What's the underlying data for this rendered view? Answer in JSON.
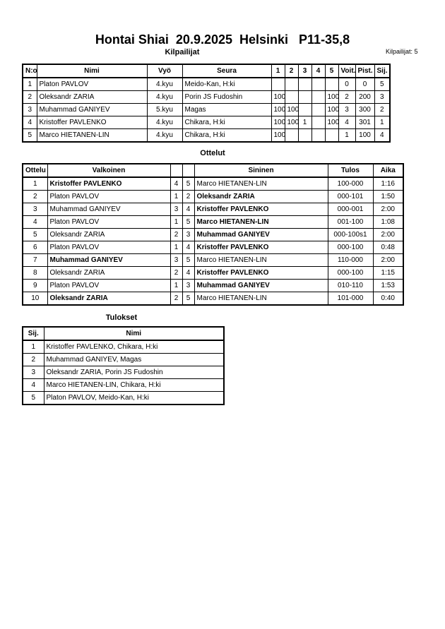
{
  "header": {
    "title": "Hontai Shiai  20.9.2025  Helsinki   P11-35,8",
    "subtitle": "Kilpailijat",
    "count": "Kilpailijat: 5"
  },
  "competitors": {
    "columns": [
      "N:o",
      "Nimi",
      "Vyö",
      "Seura",
      "1",
      "2",
      "3",
      "4",
      "5",
      "Voit.",
      "Pist.",
      "Sij."
    ],
    "rows": [
      [
        "1",
        "Platon PAVLOV",
        "4.kyu",
        "Meido-Kan, H:ki",
        null,
        null,
        null,
        null,
        null,
        "0",
        "0",
        "5"
      ],
      [
        "2",
        "Oleksandr ZARIA",
        "4.kyu",
        "Porin JS Fudoshin",
        "100",
        null,
        null,
        null,
        "100",
        "2",
        "200",
        "3"
      ],
      [
        "3",
        "Muhammad GANIYEV",
        "5.kyu",
        "Magas",
        "100",
        "100",
        null,
        null,
        "100",
        "3",
        "300",
        "2"
      ],
      [
        "4",
        "Kristoffer PAVLENKO",
        "4.kyu",
        "Chikara, H:ki",
        "100",
        "100",
        "1",
        null,
        "100",
        "4",
        "301",
        "1"
      ],
      [
        "5",
        "Marco HIETANEN-LIN",
        "4.kyu",
        "Chikara, H:ki",
        "100",
        null,
        null,
        null,
        null,
        "1",
        "100",
        "4"
      ]
    ]
  },
  "matches": {
    "title": "Ottelut",
    "columns": [
      "Ottelu",
      "Valkoinen",
      null,
      null,
      "Sininen",
      "Tulos",
      "Aika"
    ],
    "rows": [
      {
        "cells": [
          "1",
          "Kristoffer PAVLENKO",
          "4",
          "5",
          "Marco HIETANEN-LIN",
          "100-000",
          "1:16"
        ],
        "winner": "white"
      },
      {
        "cells": [
          "2",
          "Platon PAVLOV",
          "1",
          "2",
          "Oleksandr ZARIA",
          "000-101",
          "1:50"
        ],
        "winner": "blue"
      },
      {
        "cells": [
          "3",
          "Muhammad GANIYEV",
          "3",
          "4",
          "Kristoffer PAVLENKO",
          "000-001",
          "2:00"
        ],
        "winner": "blue"
      },
      {
        "cells": [
          "4",
          "Platon PAVLOV",
          "1",
          "5",
          "Marco HIETANEN-LIN",
          "001-100",
          "1:08"
        ],
        "winner": "blue"
      },
      {
        "cells": [
          "5",
          "Oleksandr ZARIA",
          "2",
          "3",
          "Muhammad GANIYEV",
          "000-100s1",
          "2:00"
        ],
        "winner": "blue"
      },
      {
        "cells": [
          "6",
          "Platon PAVLOV",
          "1",
          "4",
          "Kristoffer PAVLENKO",
          "000-100",
          "0:48"
        ],
        "winner": "blue"
      },
      {
        "cells": [
          "7",
          "Muhammad GANIYEV",
          "3",
          "5",
          "Marco HIETANEN-LIN",
          "110-000",
          "2:00"
        ],
        "winner": "white"
      },
      {
        "cells": [
          "8",
          "Oleksandr ZARIA",
          "2",
          "4",
          "Kristoffer PAVLENKO",
          "000-100",
          "1:15"
        ],
        "winner": "blue"
      },
      {
        "cells": [
          "9",
          "Platon PAVLOV",
          "1",
          "3",
          "Muhammad GANIYEV",
          "010-110",
          "1:53"
        ],
        "winner": "blue"
      },
      {
        "cells": [
          "10",
          "Oleksandr ZARIA",
          "2",
          "5",
          "Marco HIETANEN-LIN",
          "101-000",
          "0:40"
        ],
        "winner": "white"
      }
    ]
  },
  "results": {
    "title": "Tulokset",
    "columns": [
      "Sij.",
      "Nimi"
    ],
    "rows": [
      [
        "1",
        "Kristoffer PAVLENKO, Chikara, H:ki"
      ],
      [
        "2",
        "Muhammad GANIYEV, Magas"
      ],
      [
        "3",
        "Oleksandr ZARIA, Porin JS Fudoshin"
      ],
      [
        "4",
        "Marco HIETANEN-LIN, Chikara, H:ki"
      ],
      [
        "5",
        "Platon PAVLOV, Meido-Kan, H:ki"
      ]
    ]
  }
}
